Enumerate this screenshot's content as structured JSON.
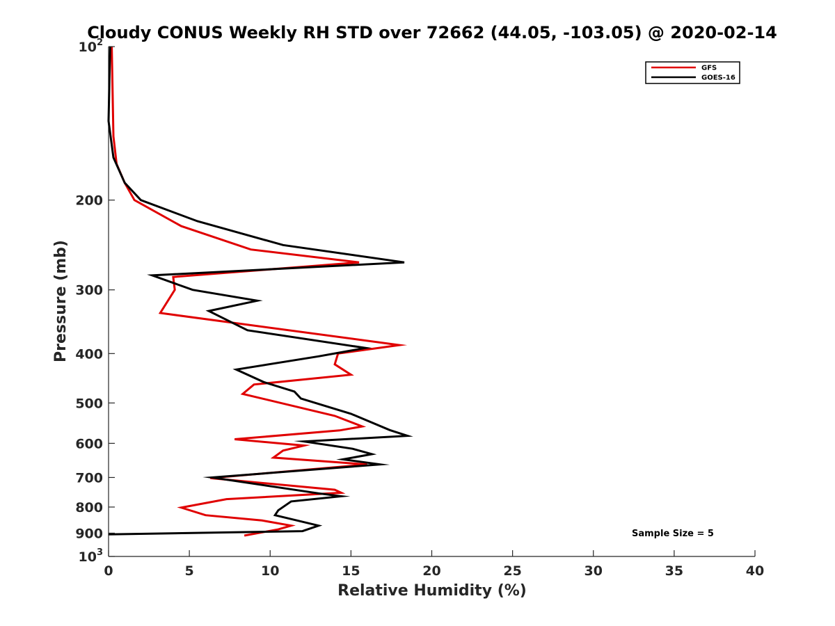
{
  "chart_data": {
    "type": "line",
    "title": "Cloudy CONUS Weekly RH STD over 72662 (44.05, -103.05) @ 2020-02-14",
    "xlabel": "Relative Humidity (%)",
    "ylabel": "Pressure (mb)",
    "xlim": [
      0,
      40
    ],
    "ylim": [
      100,
      1000
    ],
    "yscale": "log",
    "y_reversed": true,
    "xticks": [
      0,
      5,
      10,
      15,
      20,
      25,
      30,
      35,
      40
    ],
    "xtick_labels": [
      "0",
      "5",
      "10",
      "15",
      "20",
      "25",
      "30",
      "35",
      "40"
    ],
    "yticks": [
      {
        "value": 100,
        "base": "10",
        "exp": "2"
      },
      {
        "value": 200,
        "label": "200"
      },
      {
        "value": 300,
        "label": "300"
      },
      {
        "value": 400,
        "label": "400"
      },
      {
        "value": 500,
        "label": "500"
      },
      {
        "value": 600,
        "label": "600"
      },
      {
        "value": 700,
        "label": "700"
      },
      {
        "value": 800,
        "label": "800"
      },
      {
        "value": 900,
        "label": "900"
      },
      {
        "value": 1000,
        "base": "10",
        "exp": "3"
      }
    ],
    "legend_position": "top-right",
    "grid": false,
    "annotation": "Sample Size = 5",
    "series": [
      {
        "name": "GFS",
        "color": "#e00000",
        "points": [
          [
            0.2,
            100
          ],
          [
            0.3,
            150
          ],
          [
            0.5,
            170
          ],
          [
            1.0,
            185
          ],
          [
            1.6,
            200
          ],
          [
            4.5,
            225
          ],
          [
            8.8,
            250
          ],
          [
            15.5,
            265
          ],
          [
            4.0,
            283
          ],
          [
            4.1,
            300
          ],
          [
            3.2,
            333
          ],
          [
            18.0,
            385
          ],
          [
            14.2,
            400
          ],
          [
            14.0,
            420
          ],
          [
            15.0,
            440
          ],
          [
            9.0,
            460
          ],
          [
            8.3,
            480
          ],
          [
            14.0,
            530
          ],
          [
            15.7,
            556
          ],
          [
            14.3,
            566
          ],
          [
            7.8,
            589
          ],
          [
            12.1,
            606
          ],
          [
            10.8,
            620
          ],
          [
            10.2,
            640
          ],
          [
            16.0,
            660
          ],
          [
            6.3,
            702
          ],
          [
            14.0,
            740
          ],
          [
            14.4,
            750
          ],
          [
            7.3,
            772
          ],
          [
            4.5,
            802
          ],
          [
            6.0,
            830
          ],
          [
            9.5,
            850
          ],
          [
            11.3,
            870
          ],
          [
            10.5,
            885
          ],
          [
            8.4,
            910
          ]
        ]
      },
      {
        "name": "GOES-16",
        "color": "#000000",
        "points": [
          [
            0.1,
            100
          ],
          [
            0.0,
            140
          ],
          [
            0.3,
            165
          ],
          [
            1.0,
            185
          ],
          [
            2.0,
            200
          ],
          [
            5.5,
            220
          ],
          [
            10.8,
            245
          ],
          [
            18.3,
            265
          ],
          [
            2.7,
            281
          ],
          [
            5.2,
            300
          ],
          [
            9.2,
            315
          ],
          [
            6.2,
            330
          ],
          [
            8.6,
            360
          ],
          [
            15.9,
            390
          ],
          [
            13.0,
            405
          ],
          [
            7.9,
            430
          ],
          [
            9.6,
            455
          ],
          [
            11.5,
            475
          ],
          [
            11.9,
            490
          ],
          [
            15.0,
            525
          ],
          [
            17.4,
            565
          ],
          [
            18.5,
            580
          ],
          [
            12.1,
            595
          ],
          [
            15.1,
            615
          ],
          [
            16.3,
            630
          ],
          [
            14.5,
            645
          ],
          [
            16.8,
            660
          ],
          [
            6.4,
            700
          ],
          [
            13.0,
            752
          ],
          [
            14.4,
            762
          ],
          [
            11.3,
            780
          ],
          [
            10.5,
            812
          ],
          [
            10.3,
            830
          ],
          [
            13.0,
            870
          ],
          [
            12.0,
            892
          ],
          [
            0.0,
            905
          ]
        ]
      }
    ]
  }
}
